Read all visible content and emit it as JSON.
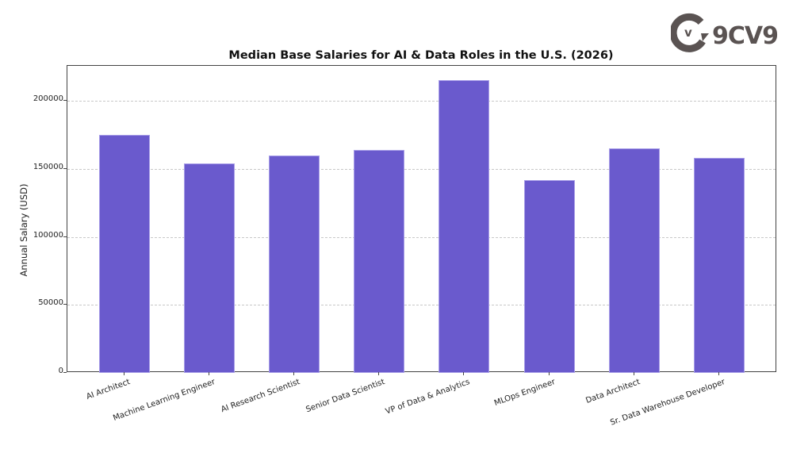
{
  "logo": {
    "text": "9CV9",
    "icon": "9cv9-logo-icon"
  },
  "chart_data": {
    "type": "bar",
    "title": "Median Base Salaries for AI & Data Roles in the U.S. (2026)",
    "xlabel": "",
    "ylabel": "Annual Salary (USD)",
    "categories": [
      "AI Architect",
      "Machine Learning Engineer",
      "AI Research Scientist",
      "Senior Data Scientist",
      "VP of Data & Analytics",
      "MLOps Engineer",
      "Data Architect",
      "Sr. Data Warehouse Developer"
    ],
    "values": [
      175000,
      154000,
      160000,
      164000,
      215000,
      142000,
      165000,
      158000
    ],
    "ylim": [
      0,
      225750
    ],
    "yticks": [
      0,
      50000,
      100000,
      150000,
      200000
    ],
    "ytick_labels": [
      "0",
      "50000",
      "100000",
      "150000",
      "200000"
    ],
    "grid": true,
    "grid_axis": "y",
    "bar_color": "#6a5acd",
    "legend": null
  }
}
